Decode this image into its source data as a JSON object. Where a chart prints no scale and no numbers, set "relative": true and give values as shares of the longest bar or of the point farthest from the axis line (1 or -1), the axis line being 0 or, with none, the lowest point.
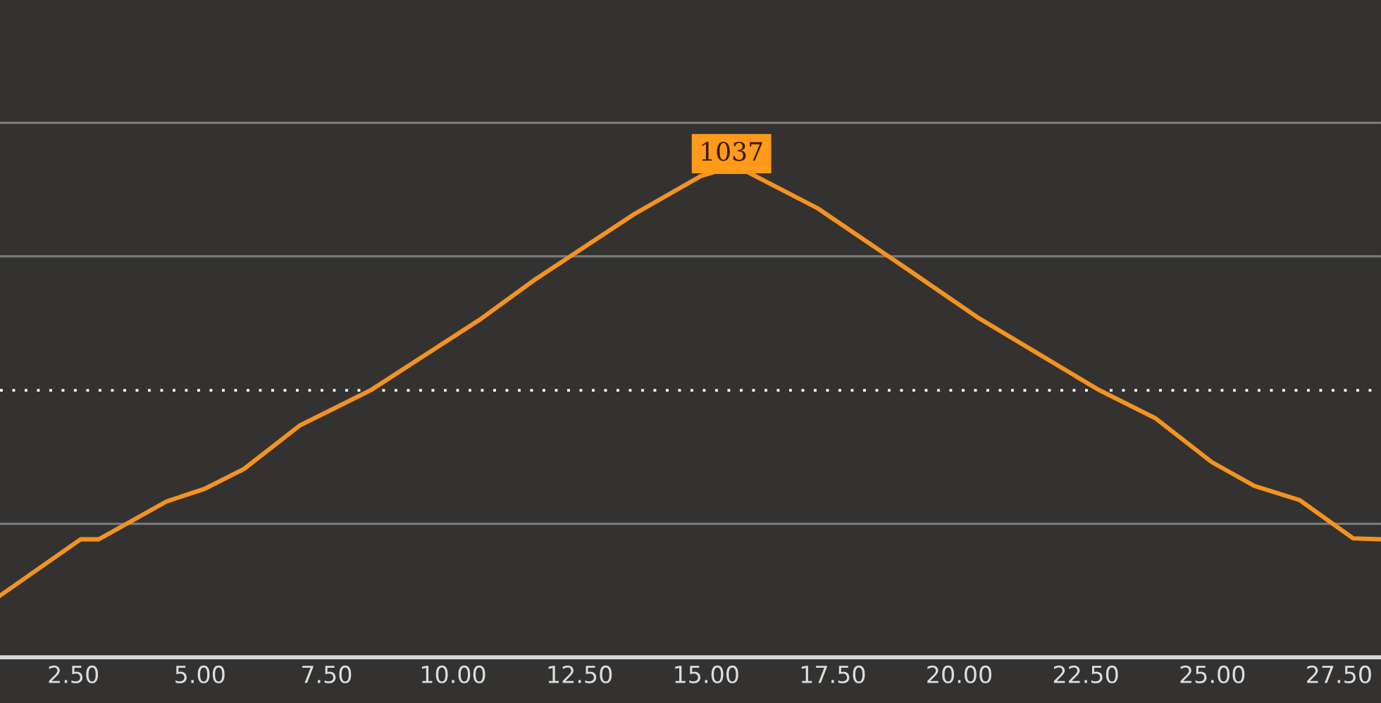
{
  "chart_data": {
    "type": "line",
    "relative": true,
    "x": [
      1.05,
      2.64,
      3.0,
      4.34,
      5.09,
      5.87,
      6.98,
      8.37,
      10.52,
      11.63,
      13.58,
      14.89,
      15.17,
      15.81,
      17.2,
      19.01,
      20.35,
      21.74,
      22.77,
      23.88,
      24.99,
      25.83,
      26.72,
      27.78,
      28.33
    ],
    "series": [
      {
        "color": "#f39320",
        "values": [
          0.127,
          0.243,
          0.243,
          0.321,
          0.347,
          0.388,
          0.478,
          0.55,
          0.695,
          0.779,
          0.913,
          0.991,
          1.0,
          1.0,
          0.925,
          0.797,
          0.701,
          0.614,
          0.55,
          0.492,
          0.402,
          0.353,
          0.324,
          0.245,
          0.243
        ]
      }
    ],
    "xlim": [
      1.05,
      28.33
    ],
    "xticks": [
      {
        "value": 2.5,
        "label": "2.50"
      },
      {
        "value": 5,
        "label": "5.00"
      },
      {
        "value": 7.5,
        "label": "7.50"
      },
      {
        "value": 10,
        "label": "10.00"
      },
      {
        "value": 12.5,
        "label": "12.50"
      },
      {
        "value": 15,
        "label": "15.00"
      },
      {
        "value": 17.5,
        "label": "17.50"
      },
      {
        "value": 20,
        "label": "20.00"
      },
      {
        "value": 22.5,
        "label": "22.50"
      },
      {
        "value": 25,
        "label": "25.00"
      },
      {
        "value": 27.5,
        "label": "27.50"
      }
    ],
    "ref_lines": [
      {
        "axis": "y",
        "value": 0.275,
        "color": "#7a7a7a",
        "line_style": "solid"
      },
      {
        "axis": "y",
        "value": 0.55,
        "color": "#ffffff",
        "line_style": "dotted"
      },
      {
        "axis": "y",
        "value": 0.826,
        "color": "#7a7a7a",
        "line_style": "solid"
      },
      {
        "axis": "y",
        "value": 1.101,
        "color": "#7a7a7a",
        "line_style": "solid"
      }
    ],
    "annotations": [
      {
        "text": "1037",
        "x": 15.5,
        "y": 1.0
      }
    ],
    "grid": false,
    "legend": false,
    "marker": "none",
    "line_style": "solid"
  }
}
